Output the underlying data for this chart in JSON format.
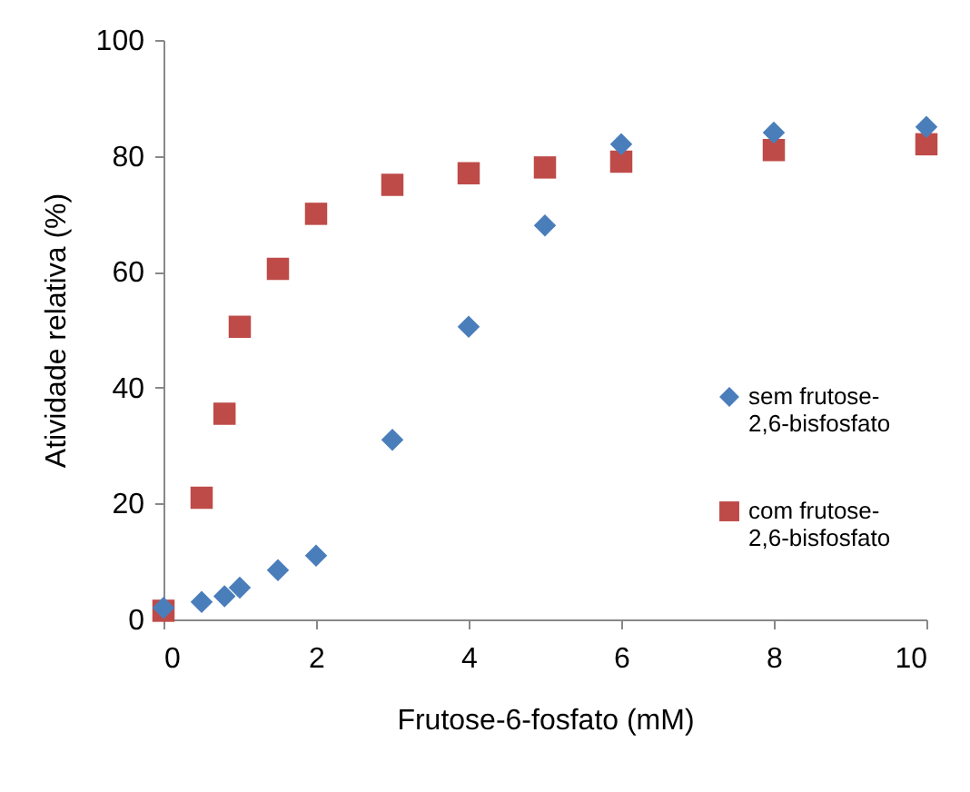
{
  "chart_data": {
    "type": "scatter",
    "xlabel": "Frutose-6-fosfato (mM)",
    "ylabel": "Atividade relativa (%)",
    "xlim": [
      0,
      10
    ],
    "xticks": [
      0,
      2,
      4,
      6,
      8,
      10
    ],
    "ylim": [
      0,
      100
    ],
    "yticks": [
      0,
      20,
      40,
      60,
      80,
      100
    ],
    "grid": false,
    "legend": "right",
    "series": [
      {
        "name": "sem frutose-2,6-bisfosfato",
        "color": "#4a7ebb",
        "marker": "diamond",
        "x": [
          0,
          0.5,
          0.8,
          1,
          1.5,
          2,
          3,
          4,
          5,
          6,
          8,
          10
        ],
        "values": [
          2,
          3,
          4,
          5.5,
          8.5,
          11,
          31,
          50.5,
          68,
          82,
          84,
          85
        ]
      },
      {
        "name": "com frutose-2,6-bisfosfato",
        "color": "#be4b48",
        "marker": "square",
        "x": [
          0,
          0.5,
          0.8,
          1,
          1.5,
          2,
          3,
          4,
          5,
          6,
          8,
          10
        ],
        "values": [
          1.5,
          21,
          35.5,
          50.5,
          60.5,
          70,
          75,
          77,
          78,
          79,
          81,
          82
        ]
      }
    ]
  }
}
